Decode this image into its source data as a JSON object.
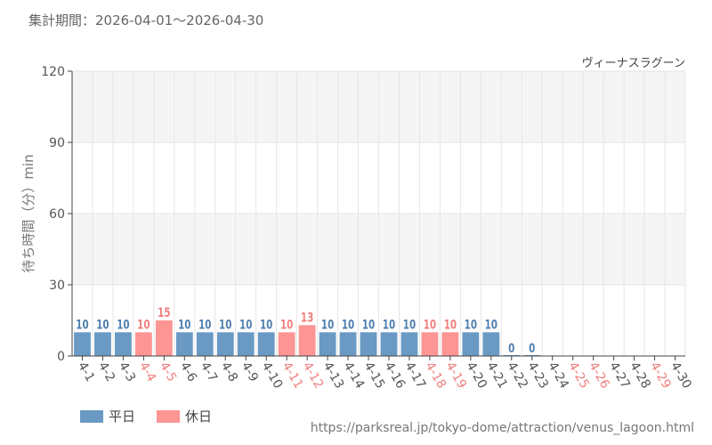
{
  "header": {
    "period_text": "集計期間：2026-04-01～2026-04-30"
  },
  "colors": {
    "weekday": "#6a9ac4",
    "holiday": "#fc9594",
    "weekday_text": "#4f7fae",
    "holiday_text": "#f07f7f"
  },
  "legend": {
    "weekday_label": "平日",
    "holiday_label": "休日"
  },
  "footer": {
    "source_url": "https://parksreal.jp/tokyo-dome/attraction/venus_lagoon.html"
  },
  "chart_data": {
    "type": "bar",
    "title": "ヴィーナスラグーン",
    "ylabel": "待ち時間（分）min",
    "xlabel": "",
    "ylim": [
      0,
      120
    ],
    "yticks": [
      0,
      30,
      60,
      90,
      120
    ],
    "grid": true,
    "legend_placement": "bottom-left",
    "categories": [
      "4-1",
      "4-2",
      "4-3",
      "4-4",
      "4-5",
      "4-6",
      "4-7",
      "4-8",
      "4-9",
      "4-10",
      "4-11",
      "4-12",
      "4-13",
      "4-14",
      "4-15",
      "4-16",
      "4-17",
      "4-18",
      "4-19",
      "4-20",
      "4-21",
      "4-22",
      "4-23",
      "4-24",
      "4-25",
      "4-26",
      "4-27",
      "4-28",
      "4-29",
      "4-30"
    ],
    "values": [
      10,
      10,
      10,
      10,
      15,
      10,
      10,
      10,
      10,
      10,
      10,
      13,
      10,
      10,
      10,
      10,
      10,
      10,
      10,
      10,
      10,
      0,
      0,
      null,
      null,
      null,
      null,
      null,
      null,
      null
    ],
    "day_type": [
      "weekday",
      "weekday",
      "weekday",
      "holiday",
      "holiday",
      "weekday",
      "weekday",
      "weekday",
      "weekday",
      "weekday",
      "holiday",
      "holiday",
      "weekday",
      "weekday",
      "weekday",
      "weekday",
      "weekday",
      "holiday",
      "holiday",
      "weekday",
      "weekday",
      "weekday",
      "weekday",
      "weekday",
      "holiday",
      "holiday",
      "weekday",
      "weekday",
      "holiday",
      "weekday"
    ]
  }
}
